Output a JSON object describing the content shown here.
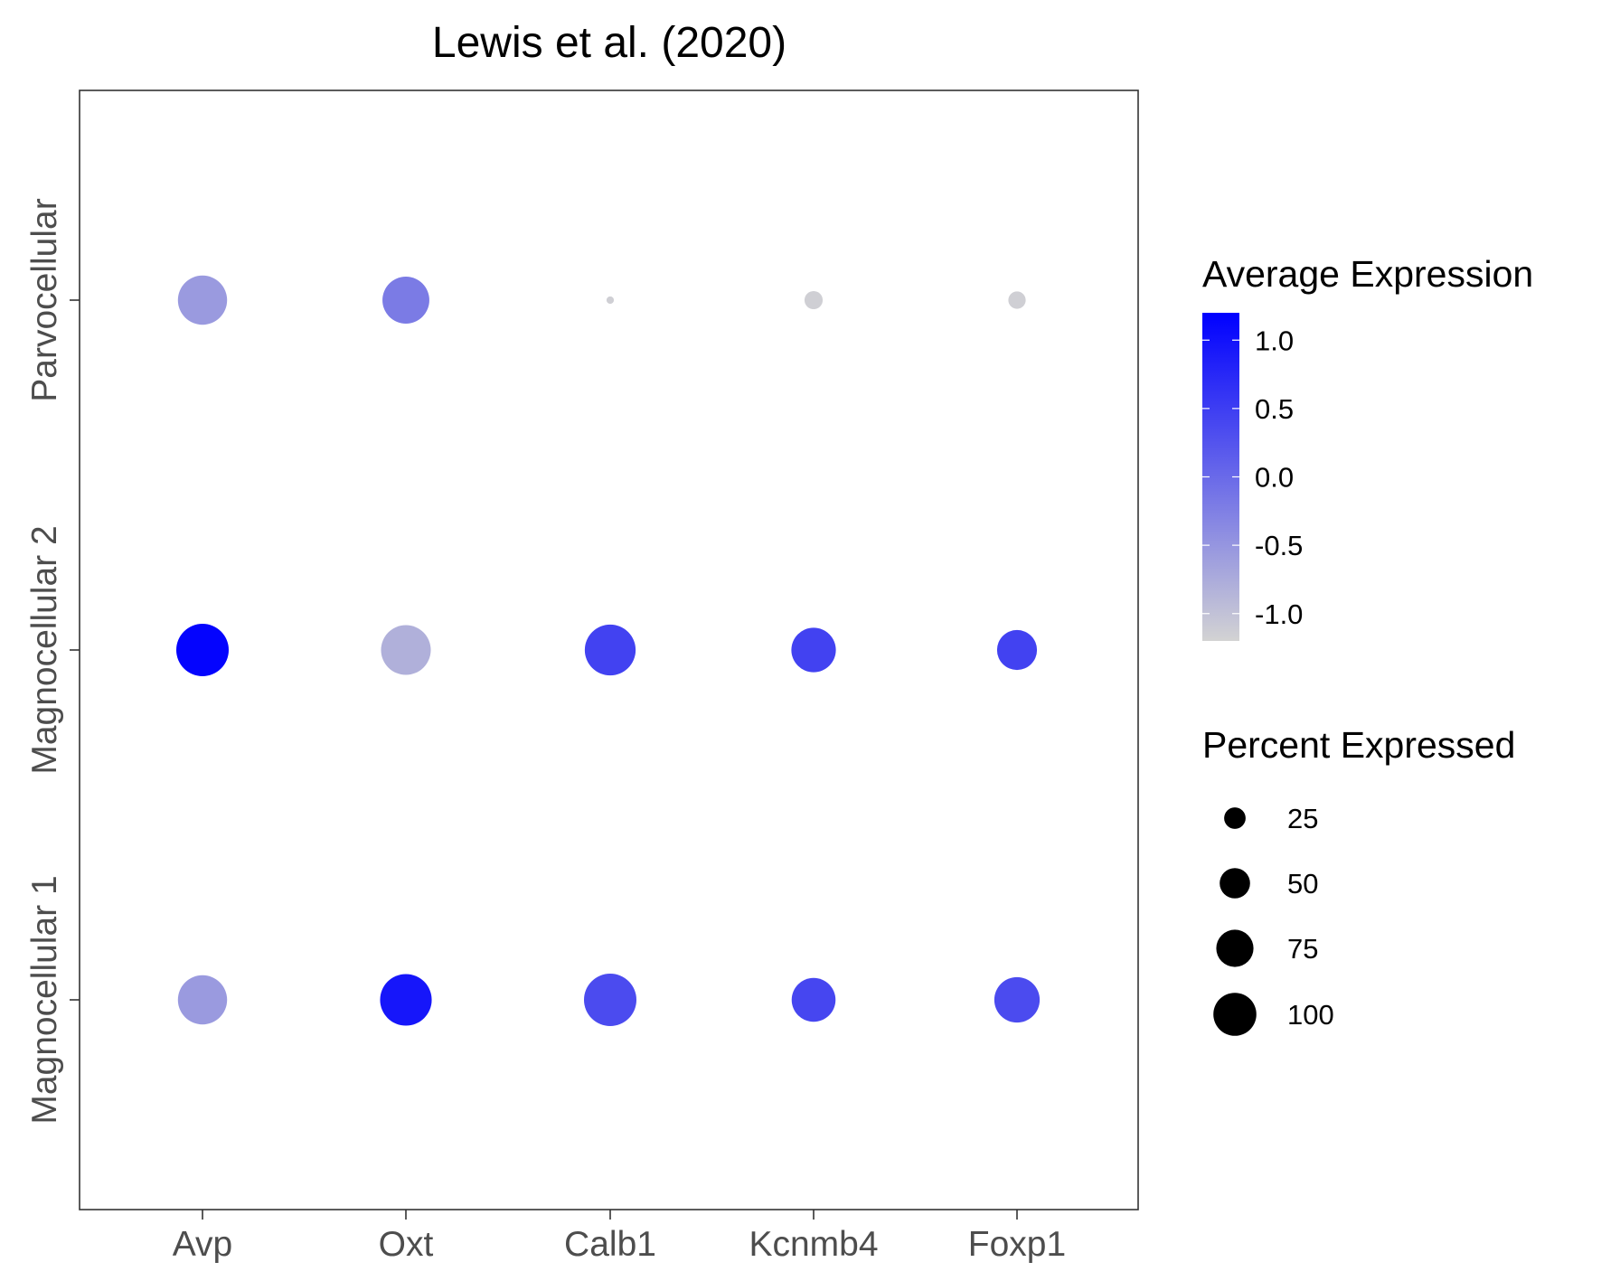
{
  "chart_data": {
    "type": "scatter",
    "title": "Lewis et al. (2020)",
    "x_categories": [
      "Avp",
      "Oxt",
      "Calb1",
      "Kcnmb4",
      "Foxp1"
    ],
    "y_categories": [
      "Magnocellular 1",
      "Magnocellular 2",
      "Parvocellular"
    ],
    "points": [
      {
        "x": "Avp",
        "y": "Parvocellular",
        "avg_expression": -0.55,
        "pct_expressed": 88
      },
      {
        "x": "Oxt",
        "y": "Parvocellular",
        "avg_expression": -0.2,
        "pct_expressed": 80
      },
      {
        "x": "Calb1",
        "y": "Parvocellular",
        "avg_expression": -1.15,
        "pct_expressed": 2
      },
      {
        "x": "Kcnmb4",
        "y": "Parvocellular",
        "avg_expression": -1.15,
        "pct_expressed": 12
      },
      {
        "x": "Foxp1",
        "y": "Parvocellular",
        "avg_expression": -1.15,
        "pct_expressed": 11
      },
      {
        "x": "Avp",
        "y": "Magnocellular 2",
        "avg_expression": 1.15,
        "pct_expressed": 100
      },
      {
        "x": "Oxt",
        "y": "Magnocellular 2",
        "avg_expression": -0.8,
        "pct_expressed": 90
      },
      {
        "x": "Calb1",
        "y": "Magnocellular 2",
        "avg_expression": 0.45,
        "pct_expressed": 94
      },
      {
        "x": "Kcnmb4",
        "y": "Magnocellular 2",
        "avg_expression": 0.45,
        "pct_expressed": 72
      },
      {
        "x": "Foxp1",
        "y": "Magnocellular 2",
        "avg_expression": 0.45,
        "pct_expressed": 58
      },
      {
        "x": "Avp",
        "y": "Magnocellular 1",
        "avg_expression": -0.55,
        "pct_expressed": 88
      },
      {
        "x": "Oxt",
        "y": "Magnocellular 1",
        "avg_expression": 0.95,
        "pct_expressed": 97
      },
      {
        "x": "Calb1",
        "y": "Magnocellular 1",
        "avg_expression": 0.35,
        "pct_expressed": 100
      },
      {
        "x": "Kcnmb4",
        "y": "Magnocellular 1",
        "avg_expression": 0.4,
        "pct_expressed": 70
      },
      {
        "x": "Foxp1",
        "y": "Magnocellular 1",
        "avg_expression": 0.35,
        "pct_expressed": 75
      }
    ],
    "color_legend": {
      "title": "Average Expression",
      "min": -1.2,
      "max": 1.2,
      "low_color": "#d3d3d3",
      "high_color": "#0000ff",
      "ticks": [
        -1.0,
        -0.5,
        0.0,
        0.5,
        1.0
      ],
      "tick_labels": [
        "-1.0",
        "-0.5",
        "0.0",
        "0.5",
        "1.0"
      ]
    },
    "size_legend": {
      "title": "Percent Expressed",
      "values": [
        25,
        50,
        75,
        100
      ],
      "labels": [
        "25",
        "50",
        "75",
        "100"
      ]
    },
    "grid": false,
    "legend_position": "right"
  }
}
